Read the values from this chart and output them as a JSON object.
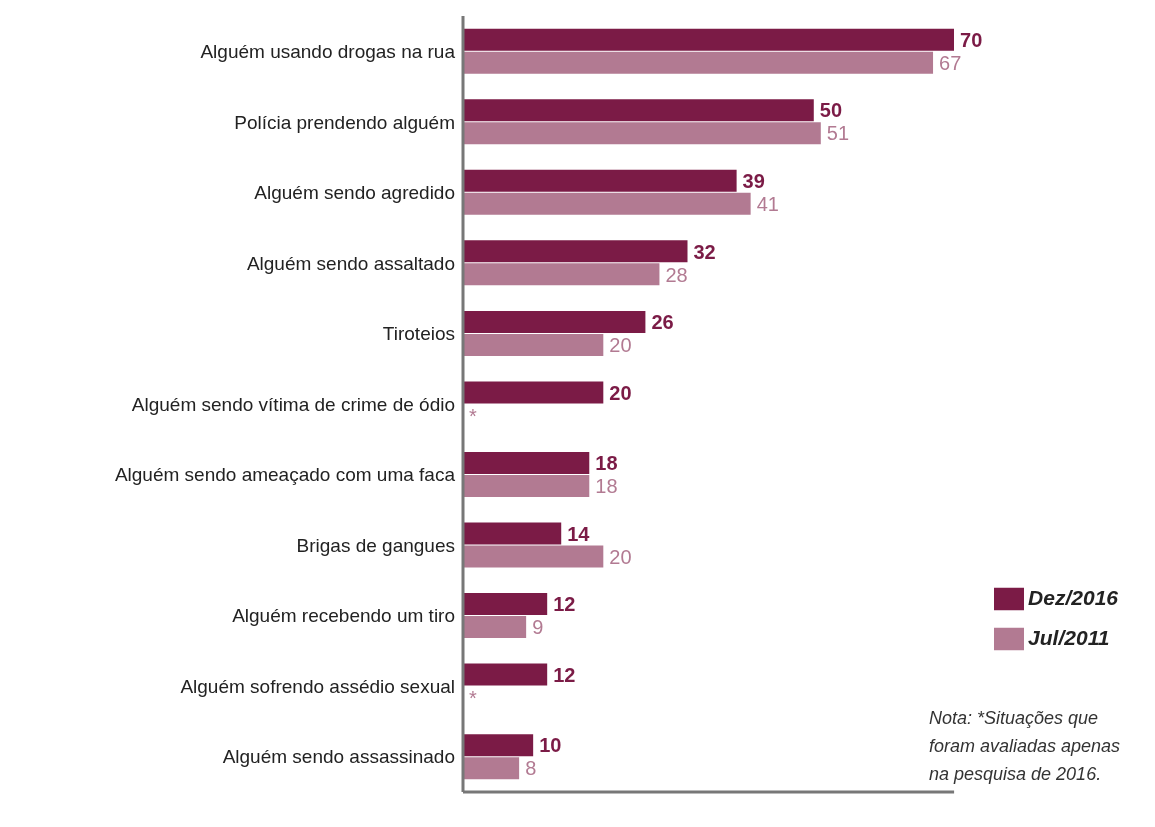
{
  "chart_data": {
    "type": "bar",
    "orientation": "horizontal",
    "categories": [
      "Alguém usando drogas na rua",
      "Polícia prendendo alguém",
      "Alguém sendo agredido",
      "Alguém sendo assaltado",
      "Tiroteios",
      "Alguém sendo vítima de crime de ódio",
      "Alguém sendo ameaçado com uma faca",
      "Brigas de gangues",
      "Alguém recebendo um tiro",
      "Alguém sofrendo assédio sexual",
      "Alguém sendo assassinado"
    ],
    "series": [
      {
        "name": "Dez/2016",
        "color": "#7b1b46",
        "values": [
          70,
          50,
          39,
          32,
          26,
          20,
          18,
          14,
          12,
          12,
          10
        ],
        "value_labels": [
          "70",
          "50",
          "39",
          "32",
          "26",
          "20",
          "18",
          "14",
          "12",
          "12",
          "10"
        ]
      },
      {
        "name": "Jul/2011",
        "color": "#b27a92",
        "values": [
          67,
          51,
          41,
          28,
          20,
          null,
          18,
          20,
          9,
          null,
          8
        ],
        "value_labels": [
          "67",
          "51",
          "41",
          "28",
          "20",
          "*",
          "18",
          "20",
          "9",
          "*",
          "8"
        ]
      }
    ],
    "legend": "bottom right",
    "grid": false,
    "annotations": [
      "Nota: *Situações que foram avaliadas apenas na pesquisa de 2016."
    ]
  }
}
